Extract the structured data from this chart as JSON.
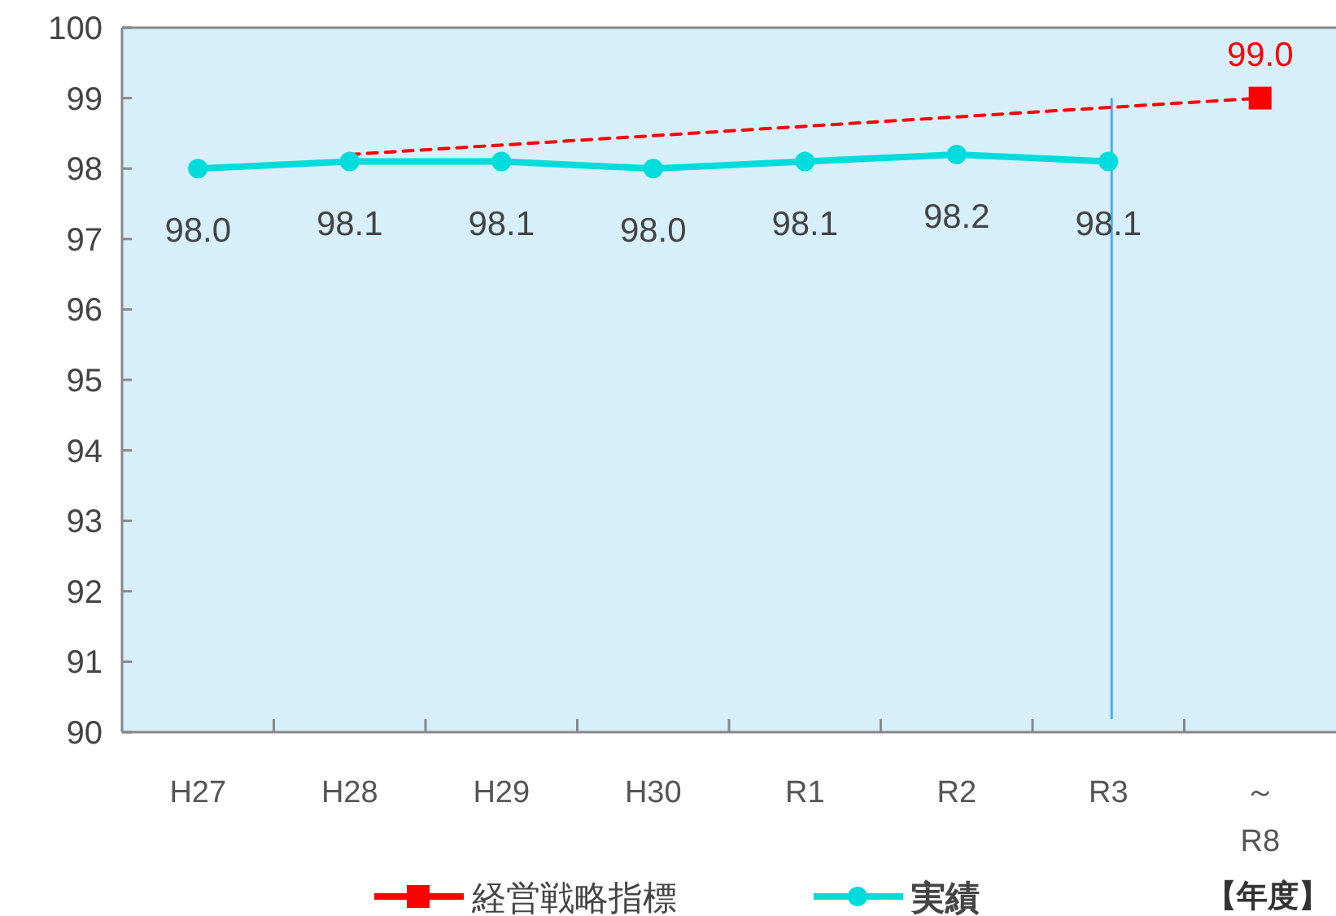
{
  "chart_data": {
    "type": "line",
    "categories": [
      "H27",
      "H28",
      "H29",
      "H30",
      "R1",
      "R2",
      "R3",
      "～\nR8"
    ],
    "xlabel": "【年度】",
    "ylim": [
      90,
      100
    ],
    "yticks": [
      90,
      91,
      92,
      93,
      94,
      95,
      96,
      97,
      98,
      99,
      100
    ],
    "grid": false,
    "legend": "bottom",
    "series": [
      {
        "name": "経営戦略指標",
        "type": "scatter",
        "marker": "square",
        "color": "#ff0000",
        "values": [
          null,
          null,
          null,
          null,
          null,
          null,
          null,
          99.0
        ],
        "value_labels": [
          null,
          null,
          null,
          null,
          null,
          null,
          null,
          "99.0"
        ]
      },
      {
        "line_style": "dashed",
        "marker": "none",
        "color": "#ff0000",
        "values": [
          null,
          98.2,
          null,
          null,
          null,
          null,
          null,
          99.0
        ]
      },
      {
        "name": "実績",
        "line_style": "solid",
        "marker": "circle",
        "color": "#00dcdc",
        "values": [
          98.0,
          98.1,
          98.1,
          98.0,
          98.1,
          98.2,
          98.1,
          null
        ],
        "value_labels": [
          "98.0",
          "98.1",
          "98.1",
          "98.0",
          "98.1",
          "98.2",
          "98.1",
          null
        ]
      }
    ],
    "ref_lines": [
      {
        "axis": "x",
        "value": "R3",
        "color": "#3cb4f0"
      }
    ]
  }
}
